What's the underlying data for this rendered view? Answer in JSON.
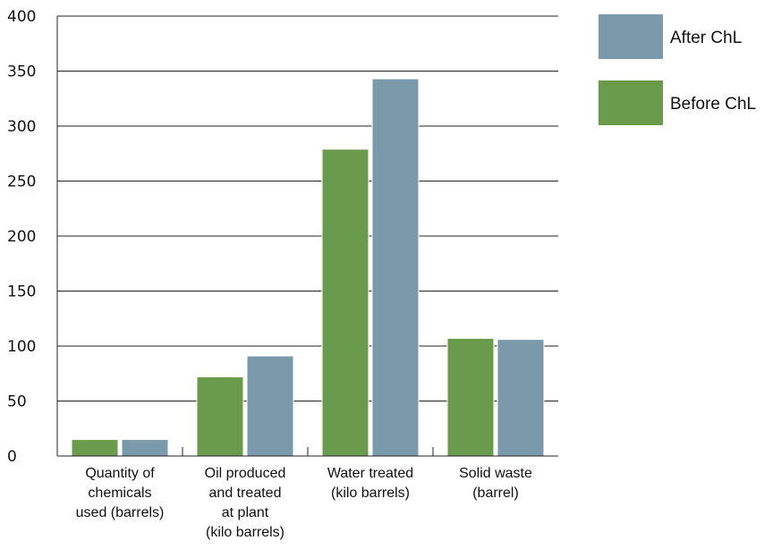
{
  "chart_data": {
    "type": "bar",
    "title": "",
    "xlabel": "",
    "ylabel": "",
    "ylim": [
      0,
      400
    ],
    "yticks": [
      0,
      50,
      100,
      150,
      200,
      250,
      300,
      350,
      400
    ],
    "grid": true,
    "legend_position": "top-right",
    "categories": [
      [
        "Quantity of",
        "chemicals",
        "used (barrels)"
      ],
      [
        "Oil produced",
        "and treated",
        "at plant",
        "(kilo barrels)"
      ],
      [
        "Water treated",
        "(kilo barrels)"
      ],
      [
        "Solid waste",
        "(barrel)"
      ]
    ],
    "series": [
      {
        "name": "Before ChL",
        "color": "#6a9a4c",
        "values": [
          15,
          72,
          279,
          107
        ]
      },
      {
        "name": "After ChL",
        "color": "#7a9aac",
        "values": [
          15,
          91,
          343,
          106
        ]
      }
    ],
    "legend_order": [
      1,
      0
    ]
  }
}
